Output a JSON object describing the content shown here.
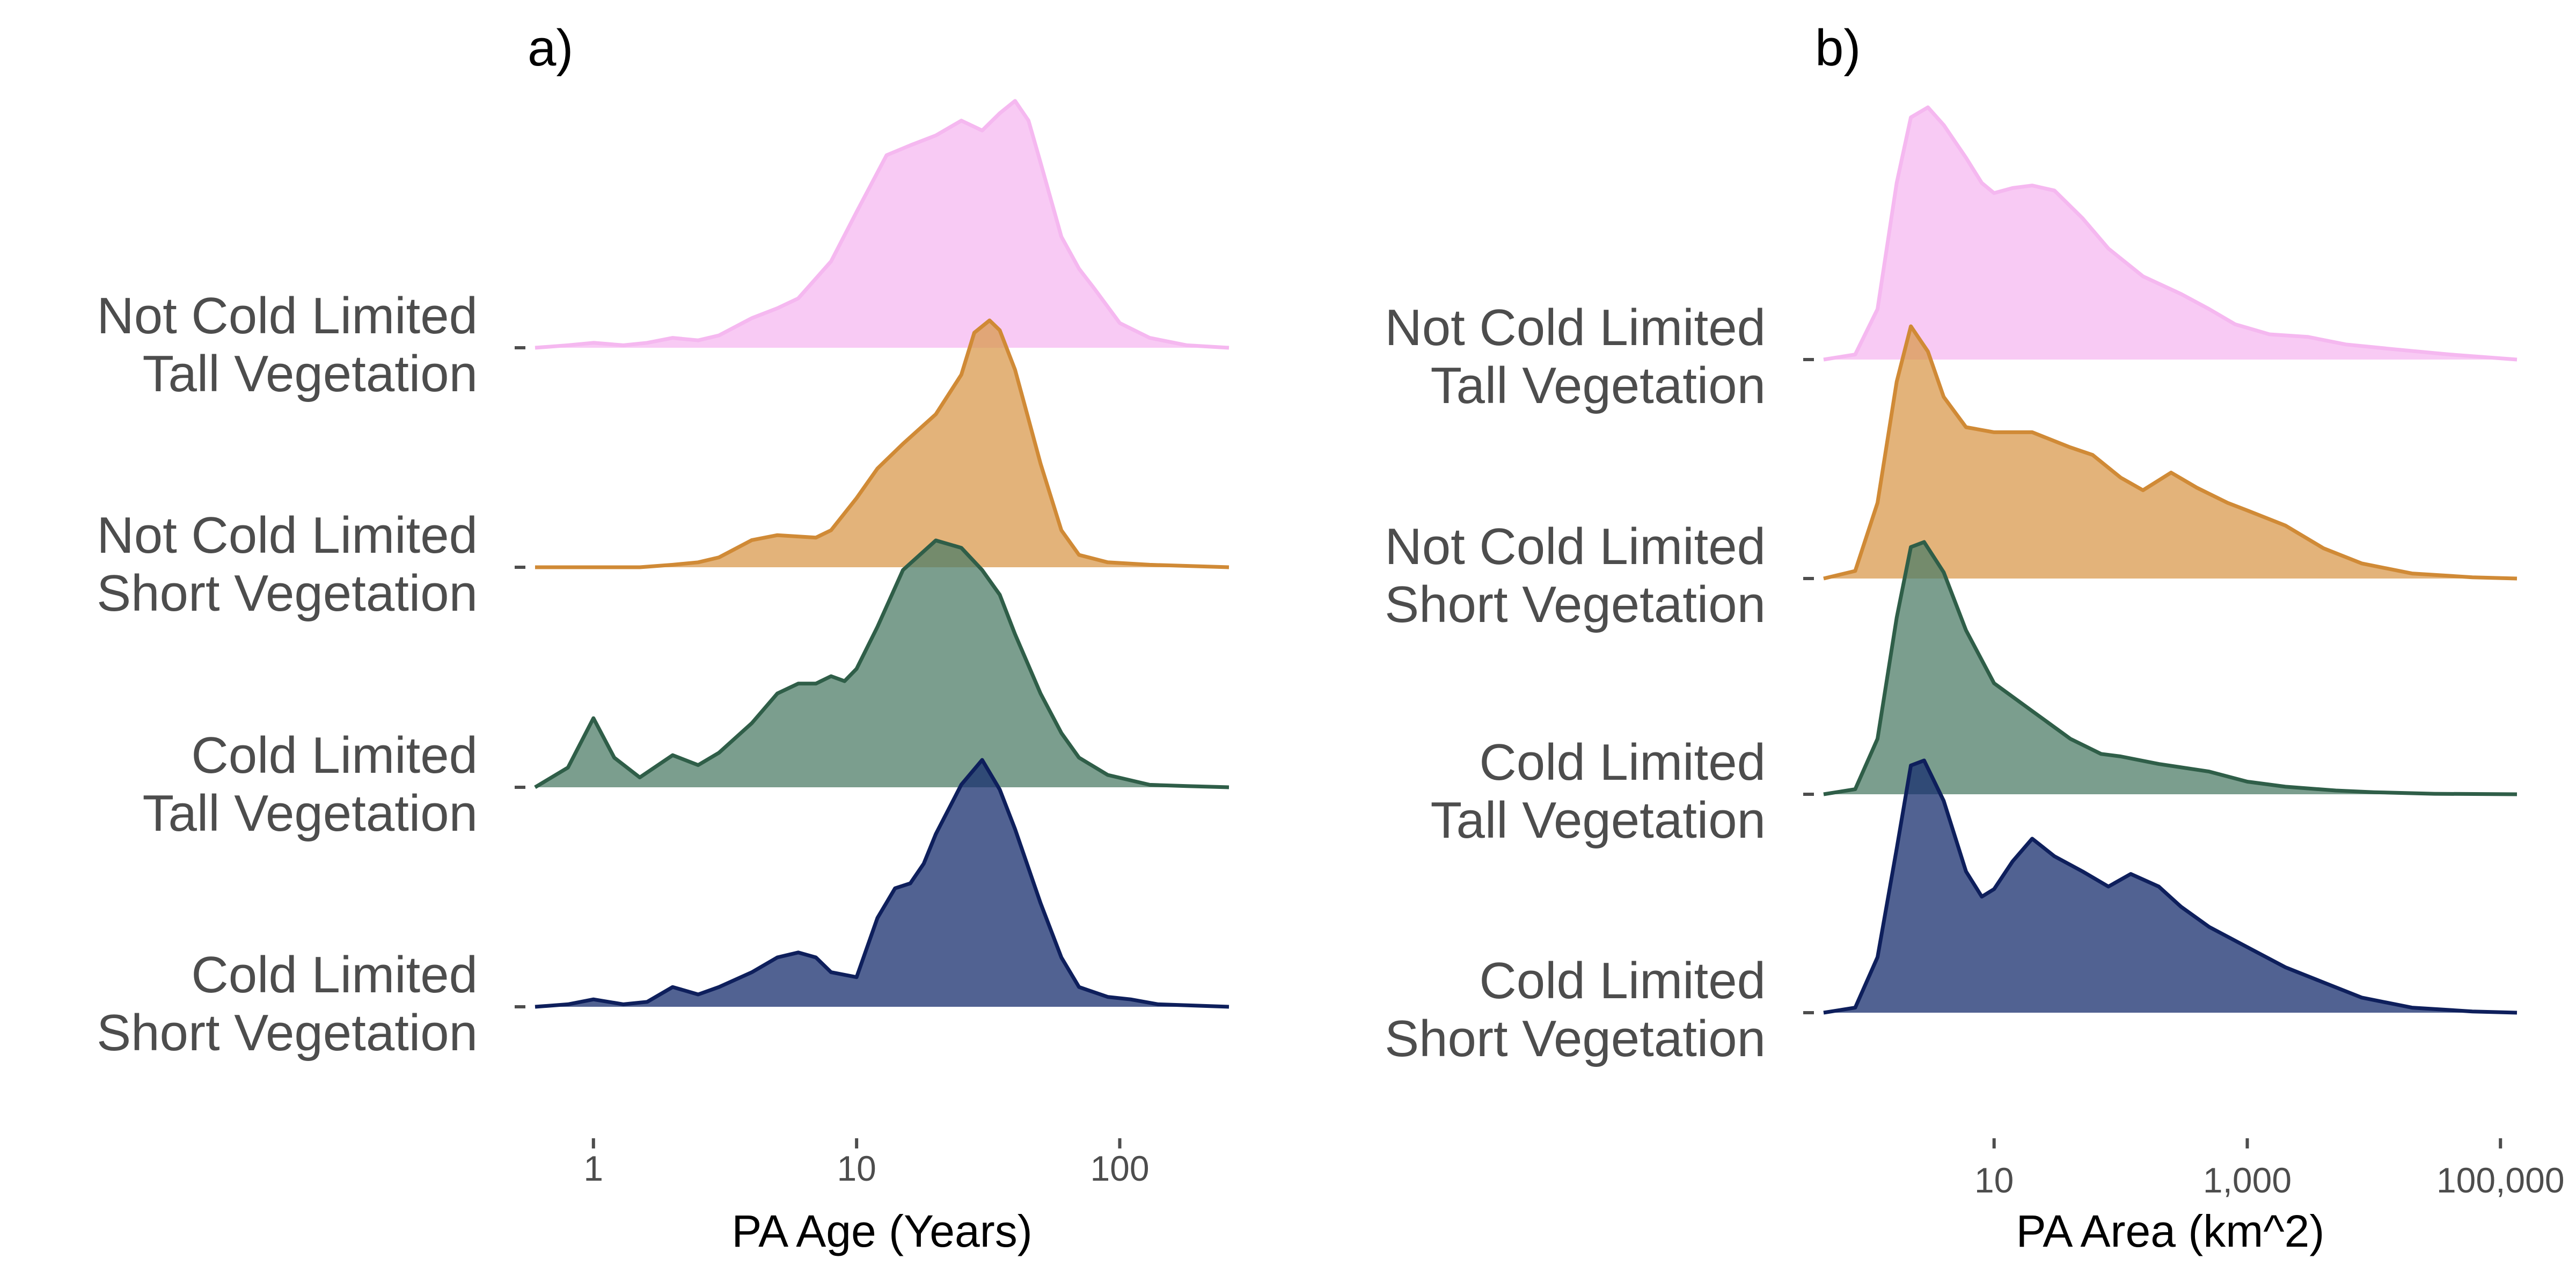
{
  "chart_data": [
    {
      "type": "area",
      "subtype": "ridgeline-density",
      "title": "a)",
      "xlabel": "PA Age (Years)",
      "ylabel": "",
      "x_scale": "log10",
      "xlim": [
        0.6,
        260
      ],
      "x_ticks": [
        {
          "value": 1,
          "label": "1"
        },
        {
          "value": 10,
          "label": "10"
        },
        {
          "value": 100,
          "label": "100"
        }
      ],
      "grid": false,
      "legend": "none",
      "categories": [
        [
          "Not Cold Limited",
          "Tall Vegetation"
        ],
        [
          "Not Cold Limited",
          "Short Vegetation"
        ],
        [
          "Cold Limited",
          "Tall Vegetation"
        ],
        [
          "Cold Limited",
          "Short Vegetation"
        ]
      ],
      "series": [
        {
          "fill": "#f5b8f0",
          "stroke": "#f5b8f0",
          "x": [
            0.6,
            0.8,
            1,
            1.3,
            1.6,
            2,
            2.5,
            3,
            4,
            5,
            6,
            8,
            10,
            13,
            16,
            20,
            25,
            30,
            35,
            40,
            45,
            50,
            60,
            70,
            80,
            100,
            130,
            180,
            260
          ],
          "density": [
            0,
            0.01,
            0.02,
            0.01,
            0.02,
            0.04,
            0.03,
            0.05,
            0.12,
            0.16,
            0.2,
            0.35,
            0.55,
            0.78,
            0.82,
            0.86,
            0.92,
            0.88,
            0.95,
            1.0,
            0.92,
            0.75,
            0.45,
            0.32,
            0.24,
            0.1,
            0.04,
            0.01,
            0
          ]
        },
        {
          "fill": "#d99a4e",
          "stroke": "#d08a36",
          "x": [
            0.6,
            1,
            1.5,
            2,
            2.5,
            3,
            4,
            5,
            7,
            8,
            10,
            12,
            15,
            20,
            25,
            28,
            32,
            35,
            40,
            45,
            50,
            60,
            70,
            90,
            130,
            260
          ],
          "density": [
            0,
            0,
            0,
            0.01,
            0.02,
            0.04,
            0.11,
            0.13,
            0.12,
            0.15,
            0.28,
            0.4,
            0.5,
            0.62,
            0.78,
            0.95,
            1.0,
            0.96,
            0.8,
            0.6,
            0.42,
            0.15,
            0.05,
            0.02,
            0.01,
            0
          ]
        },
        {
          "fill": "#4f7d68",
          "stroke": "#2f5e48",
          "x": [
            0.6,
            0.8,
            1,
            1.2,
            1.5,
            2,
            2.5,
            3,
            4,
            5,
            6,
            7,
            8,
            9,
            10,
            12,
            15,
            20,
            25,
            30,
            35,
            40,
            50,
            60,
            70,
            90,
            130,
            180,
            260
          ],
          "density": [
            0,
            0.08,
            0.28,
            0.12,
            0.04,
            0.13,
            0.09,
            0.14,
            0.26,
            0.38,
            0.42,
            0.42,
            0.45,
            0.43,
            0.48,
            0.65,
            0.88,
            1.0,
            0.97,
            0.88,
            0.78,
            0.62,
            0.38,
            0.22,
            0.12,
            0.05,
            0.01,
            0.005,
            0
          ]
        },
        {
          "fill": "#172e6e",
          "stroke": "#0e1f5c",
          "x": [
            0.6,
            0.8,
            1,
            1.3,
            1.6,
            2,
            2.5,
            3,
            4,
            5,
            6,
            7,
            8,
            10,
            12,
            14,
            16,
            18,
            20,
            25,
            30,
            35,
            40,
            50,
            60,
            70,
            90,
            110,
            140,
            260
          ],
          "density": [
            0,
            0.01,
            0.03,
            0.01,
            0.02,
            0.08,
            0.05,
            0.08,
            0.14,
            0.2,
            0.22,
            0.2,
            0.14,
            0.12,
            0.36,
            0.48,
            0.5,
            0.58,
            0.7,
            0.9,
            1.0,
            0.88,
            0.72,
            0.42,
            0.2,
            0.08,
            0.04,
            0.03,
            0.01,
            0
          ]
        }
      ]
    },
    {
      "type": "area",
      "subtype": "ridgeline-density",
      "title": "b)",
      "xlabel": "PA Area (km^2)",
      "ylabel": "",
      "x_scale": "log10",
      "xlim": [
        0.45,
        135000
      ],
      "x_ticks": [
        {
          "value": 10,
          "label": "10"
        },
        {
          "value": 1000,
          "label": "1,000"
        },
        {
          "value": 100000,
          "label": "100,000"
        }
      ],
      "grid": false,
      "legend": "none",
      "categories": [
        [
          "Not Cold Limited",
          "Tall Vegetation"
        ],
        [
          "Not Cold Limited",
          "Short Vegetation"
        ],
        [
          "Cold Limited",
          "Tall Vegetation"
        ],
        [
          "Cold Limited",
          "Short Vegetation"
        ]
      ],
      "series": [
        {
          "fill": "#f5b8f0",
          "stroke": "#f5b8f0",
          "x": [
            0.45,
            0.8,
            1.2,
            1.7,
            2.2,
            3,
            4,
            6,
            8,
            10,
            14,
            20,
            30,
            50,
            80,
            150,
            300,
            500,
            800,
            1500,
            3000,
            6000,
            15000,
            40000,
            135000
          ],
          "density": [
            0,
            0.02,
            0.2,
            0.7,
            0.96,
            1.0,
            0.93,
            0.8,
            0.7,
            0.66,
            0.68,
            0.69,
            0.67,
            0.56,
            0.44,
            0.33,
            0.26,
            0.2,
            0.14,
            0.1,
            0.09,
            0.06,
            0.04,
            0.02,
            0
          ]
        },
        {
          "fill": "#d99a4e",
          "stroke": "#d08a36",
          "x": [
            0.45,
            0.8,
            1.2,
            1.7,
            2.2,
            3,
            4,
            6,
            10,
            20,
            40,
            60,
            100,
            150,
            250,
            400,
            700,
            1000,
            2000,
            4000,
            8000,
            20000,
            60000,
            135000
          ],
          "density": [
            0,
            0.03,
            0.3,
            0.78,
            1.0,
            0.9,
            0.72,
            0.6,
            0.58,
            0.58,
            0.52,
            0.49,
            0.4,
            0.35,
            0.42,
            0.36,
            0.3,
            0.27,
            0.21,
            0.12,
            0.06,
            0.02,
            0.005,
            0
          ]
        },
        {
          "fill": "#4f7d68",
          "stroke": "#2f5e48",
          "x": [
            0.45,
            0.8,
            1.2,
            1.7,
            2.2,
            2.8,
            4,
            6,
            10,
            20,
            40,
            70,
            100,
            200,
            500,
            1000,
            2000,
            5000,
            10000,
            30000,
            135000
          ],
          "density": [
            0,
            0.02,
            0.22,
            0.7,
            0.98,
            1.0,
            0.88,
            0.65,
            0.44,
            0.33,
            0.22,
            0.16,
            0.15,
            0.12,
            0.09,
            0.05,
            0.03,
            0.015,
            0.008,
            0.002,
            0
          ]
        },
        {
          "fill": "#172e6e",
          "stroke": "#0e1f5c",
          "x": [
            0.45,
            0.8,
            1.2,
            1.7,
            2.2,
            2.8,
            4,
            6,
            8,
            10,
            14,
            20,
            30,
            50,
            80,
            120,
            200,
            300,
            500,
            1000,
            2000,
            4000,
            8000,
            20000,
            60000,
            135000
          ],
          "density": [
            0,
            0.02,
            0.22,
            0.65,
            0.98,
            1.0,
            0.84,
            0.56,
            0.46,
            0.49,
            0.6,
            0.69,
            0.62,
            0.56,
            0.5,
            0.55,
            0.5,
            0.42,
            0.34,
            0.26,
            0.18,
            0.12,
            0.06,
            0.02,
            0.005,
            0
          ]
        }
      ]
    }
  ]
}
